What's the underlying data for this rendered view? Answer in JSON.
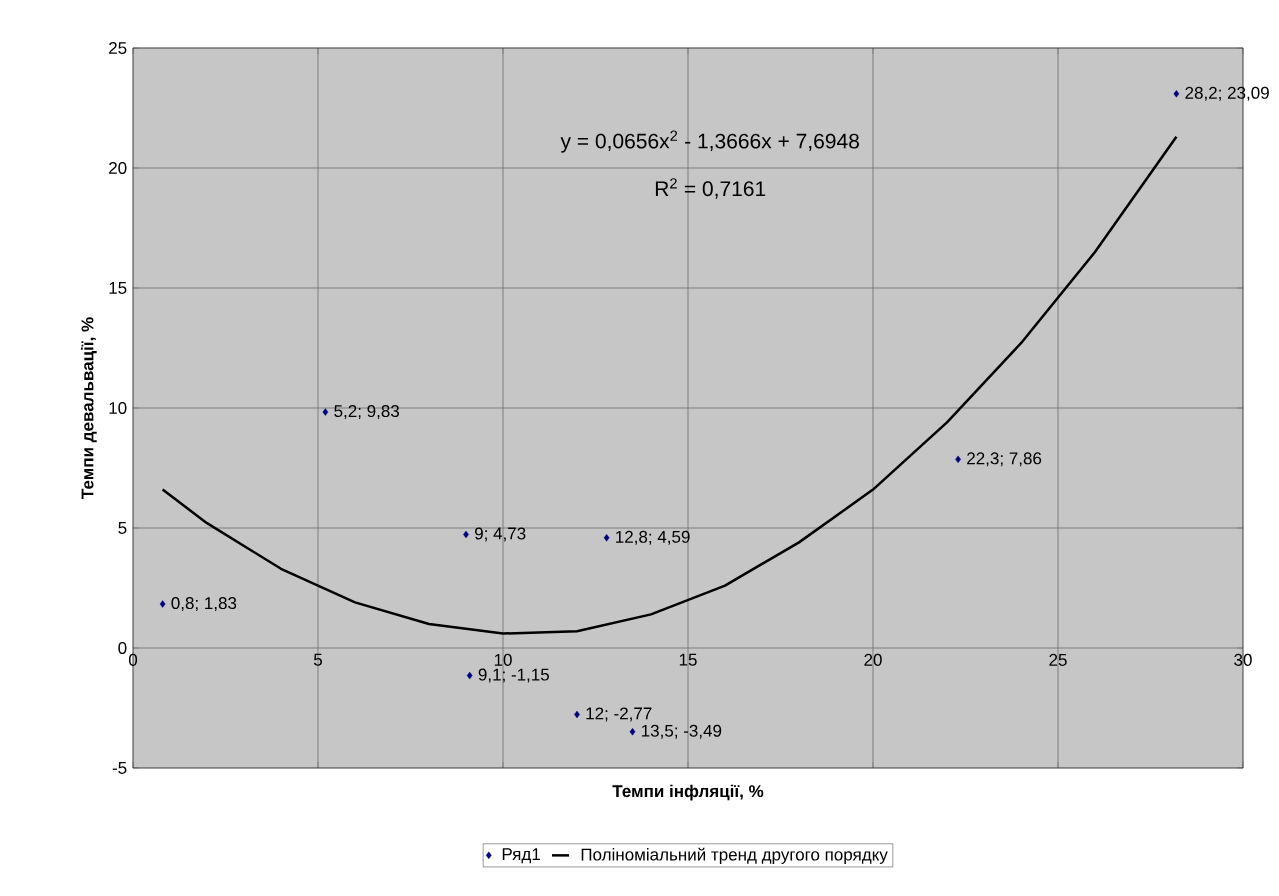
{
  "chart_data": {
    "type": "scatter",
    "xlabel": "Темпи інфляції, %",
    "ylabel": "Темпи девальвації, %",
    "xlim": [
      0,
      30
    ],
    "xticks": [
      0,
      5,
      10,
      15,
      20,
      25,
      30
    ],
    "ylim": [
      -5,
      25
    ],
    "yticks": [
      -5,
      0,
      5,
      10,
      15,
      20,
      25
    ],
    "grid": true,
    "legend": "bottom",
    "annotations": [
      "y = 0,0656x$^{2}$ - 1,3666x + 7,6948",
      "R$^{2}$ = 0,7161"
    ],
    "series": [
      {
        "name": "Ряд1",
        "marker": "diamond",
        "color": "#000080",
        "x": [
          0.8,
          5.2,
          9,
          12.8,
          22.3,
          28.2,
          9.1,
          12,
          13.5
        ],
        "values": [
          1.83,
          9.83,
          4.73,
          4.59,
          7.86,
          23.09,
          -1.15,
          -2.77,
          -3.49
        ],
        "value_labels": [
          "0,8; 1,83",
          "5,2; 9,83",
          "9; 4,73",
          "12,8; 4,59",
          "22,3; 7,86",
          "28,2; 23,09",
          "9,1; -1,15",
          "12; -2,77",
          "13,5; -3,49"
        ]
      },
      {
        "name": "Поліноміальний тренд другого порядку",
        "type": "line",
        "color": "#000000",
        "x": [
          0.8,
          2,
          4,
          6,
          8,
          10,
          12,
          14,
          16,
          18,
          20,
          22,
          24,
          26,
          28.2
        ],
        "values": [
          6.6,
          5.2,
          3.3,
          1.9,
          1.0,
          0.6,
          0.7,
          1.4,
          2.6,
          4.4,
          6.6,
          9.4,
          12.7,
          16.5,
          21.3
        ]
      }
    ]
  }
}
